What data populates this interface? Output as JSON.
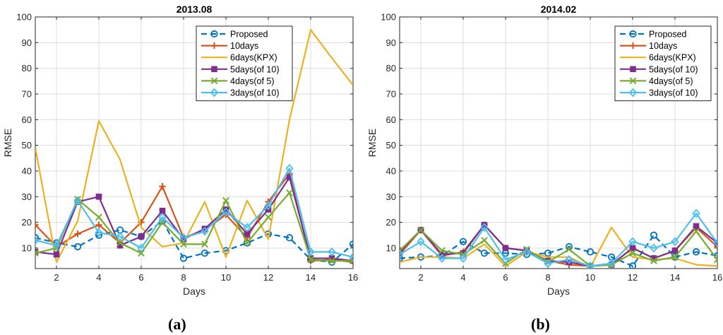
{
  "colors": {
    "Proposed": "#0072BD",
    "10days": "#D95319",
    "6days(KPX)": "#EDB120",
    "5days(of 10)": "#7E2F8E",
    "4days(of 5)": "#77AC30",
    "3days(of 10)": "#4DBEEE"
  },
  "markers": {
    "Proposed": "circle",
    "10days": "plus",
    "6days(KPX)": "none",
    "5days(of 10)": "square",
    "4days(of 5)": "x",
    "3days(of 10)": "diamond"
  },
  "chart_data": [
    {
      "type": "line",
      "title": "2013.08",
      "caption": "(a)",
      "xlabel": "Days",
      "ylabel": "RMSE",
      "xlim": [
        1,
        16
      ],
      "ylim": [
        2,
        100
      ],
      "xticks": [
        2,
        4,
        6,
        8,
        10,
        12,
        14,
        16
      ],
      "yticks": [
        10,
        20,
        30,
        40,
        50,
        60,
        70,
        80,
        90,
        100
      ],
      "grid": true,
      "legend_position": "top-right",
      "x": [
        1,
        2,
        3,
        4,
        5,
        6,
        7,
        8,
        9,
        10,
        11,
        12,
        13,
        14,
        15,
        16
      ],
      "series": [
        {
          "name": "Proposed",
          "values": [
            14,
            12,
            10.5,
            15,
            17,
            14.5,
            20.5,
            6,
            8,
            9,
            12,
            15.5,
            14,
            5.5,
            4.5,
            11.5
          ]
        },
        {
          "name": "10days",
          "values": [
            19,
            10.5,
            15.5,
            19,
            12,
            20,
            34,
            14,
            17,
            23,
            14,
            28,
            39,
            5,
            5.5,
            4.5
          ]
        },
        {
          "name": "6days(KPX)",
          "values": [
            49,
            4.5,
            20.5,
            59.5,
            44.5,
            18,
            10.5,
            12,
            28,
            6.5,
            28.5,
            13.5,
            60,
            95,
            84,
            73.5
          ]
        },
        {
          "name": "5days(of 10)",
          "values": [
            8.5,
            7.5,
            28,
            30,
            11,
            14.5,
            24.5,
            13.5,
            17.5,
            25,
            15.5,
            25,
            37.5,
            6,
            6,
            5
          ]
        },
        {
          "name": "4days(of 5)",
          "values": [
            8,
            10,
            29,
            22,
            12,
            8,
            20,
            11.5,
            11.5,
            28.5,
            12,
            22,
            31.5,
            5.5,
            5,
            5
          ]
        },
        {
          "name": "3days(of 10)",
          "values": [
            13,
            11,
            28.5,
            16,
            14.5,
            10,
            22,
            14,
            16.5,
            24,
            18,
            26.5,
            41,
            8.5,
            8.5,
            6.5
          ]
        }
      ]
    },
    {
      "type": "line",
      "title": "2014.02",
      "caption": "(b)",
      "xlabel": "Days",
      "ylabel": "RMSE",
      "xlim": [
        1,
        16
      ],
      "ylim": [
        2,
        100
      ],
      "xticks": [
        2,
        4,
        6,
        8,
        10,
        12,
        14,
        16
      ],
      "yticks": [
        10,
        20,
        30,
        40,
        50,
        60,
        70,
        80,
        90,
        100
      ],
      "grid": true,
      "legend_position": "top-right",
      "x": [
        1,
        2,
        3,
        4,
        5,
        6,
        7,
        8,
        9,
        10,
        11,
        12,
        13,
        14,
        15,
        16
      ],
      "series": [
        {
          "name": "Proposed",
          "values": [
            6,
            6.5,
            7,
            12.5,
            8,
            8,
            7.5,
            8,
            10.5,
            8.5,
            6.5,
            3,
            15,
            6.5,
            8.5,
            7
          ]
        },
        {
          "name": "10days",
          "values": [
            7.5,
            17,
            7,
            8.5,
            19,
            10,
            9,
            5,
            3.5,
            3,
            3.5,
            10,
            6,
            9,
            18,
            10.5
          ]
        },
        {
          "name": "6days(KPX)",
          "values": [
            4.5,
            6.5,
            6.5,
            6,
            11.5,
            3,
            8.5,
            6.5,
            6.5,
            2.5,
            18,
            6.5,
            5.5,
            6,
            3.5,
            3
          ]
        },
        {
          "name": "5days(of 10)",
          "values": [
            8.5,
            17,
            7.5,
            8,
            19,
            10,
            9,
            5,
            4.5,
            3,
            3.5,
            10,
            6,
            9,
            18.5,
            12
          ]
        },
        {
          "name": "4days(of 5)",
          "values": [
            9,
            17,
            9,
            7.5,
            13,
            4,
            9.5,
            4.5,
            9.5,
            3,
            3.5,
            8,
            5,
            6.5,
            16.5,
            5.5
          ]
        },
        {
          "name": "3days(of 10)",
          "values": [
            7.5,
            12.5,
            6,
            6,
            18,
            5.5,
            8.5,
            4,
            5.5,
            3,
            4,
            12.5,
            10,
            12.5,
            23.5,
            12
          ]
        }
      ]
    }
  ]
}
